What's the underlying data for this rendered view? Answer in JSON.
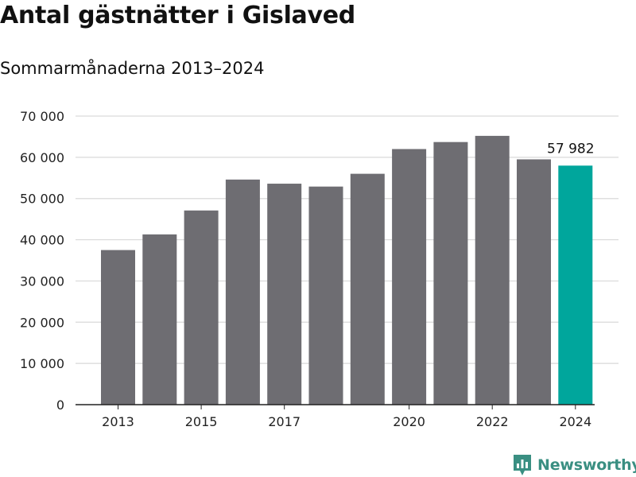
{
  "title": "Antal gästnätter i Gislaved",
  "subtitle": "Sommarmånaderna 2013–2024",
  "brand": {
    "name": "Newsworthy",
    "color": "#3a8f82",
    "icon": "bar-chart-pin-icon"
  },
  "colors": {
    "bar": "#6e6d72",
    "highlight": "#00a69c",
    "grid": "#d9d9d9",
    "axis": "#222222",
    "text": "#222222"
  },
  "chart_data": {
    "type": "bar",
    "categories": [
      "2013",
      "2014",
      "2015",
      "2016",
      "2017",
      "2018",
      "2019",
      "2020",
      "2021",
      "2022",
      "2023",
      "2024"
    ],
    "x_tick_labels": [
      "2013",
      "",
      "2015",
      "",
      "2017",
      "",
      "",
      "2020",
      "",
      "2022",
      "",
      "2024"
    ],
    "values": [
      37500,
      41300,
      47100,
      54600,
      53600,
      52900,
      56000,
      62000,
      63700,
      65200,
      59500,
      57982
    ],
    "highlight_index": 11,
    "data_labels": [
      {
        "index": 11,
        "text": "57 982"
      }
    ],
    "ylim": [
      0,
      70000
    ],
    "y_ticks": [
      0,
      10000,
      20000,
      30000,
      40000,
      50000,
      60000,
      70000
    ],
    "y_tick_labels": [
      "0",
      "10 000",
      "20 000",
      "30 000",
      "40 000",
      "50 000",
      "60 000",
      "70 000"
    ],
    "grid": true,
    "xlabel": "",
    "ylabel": ""
  }
}
